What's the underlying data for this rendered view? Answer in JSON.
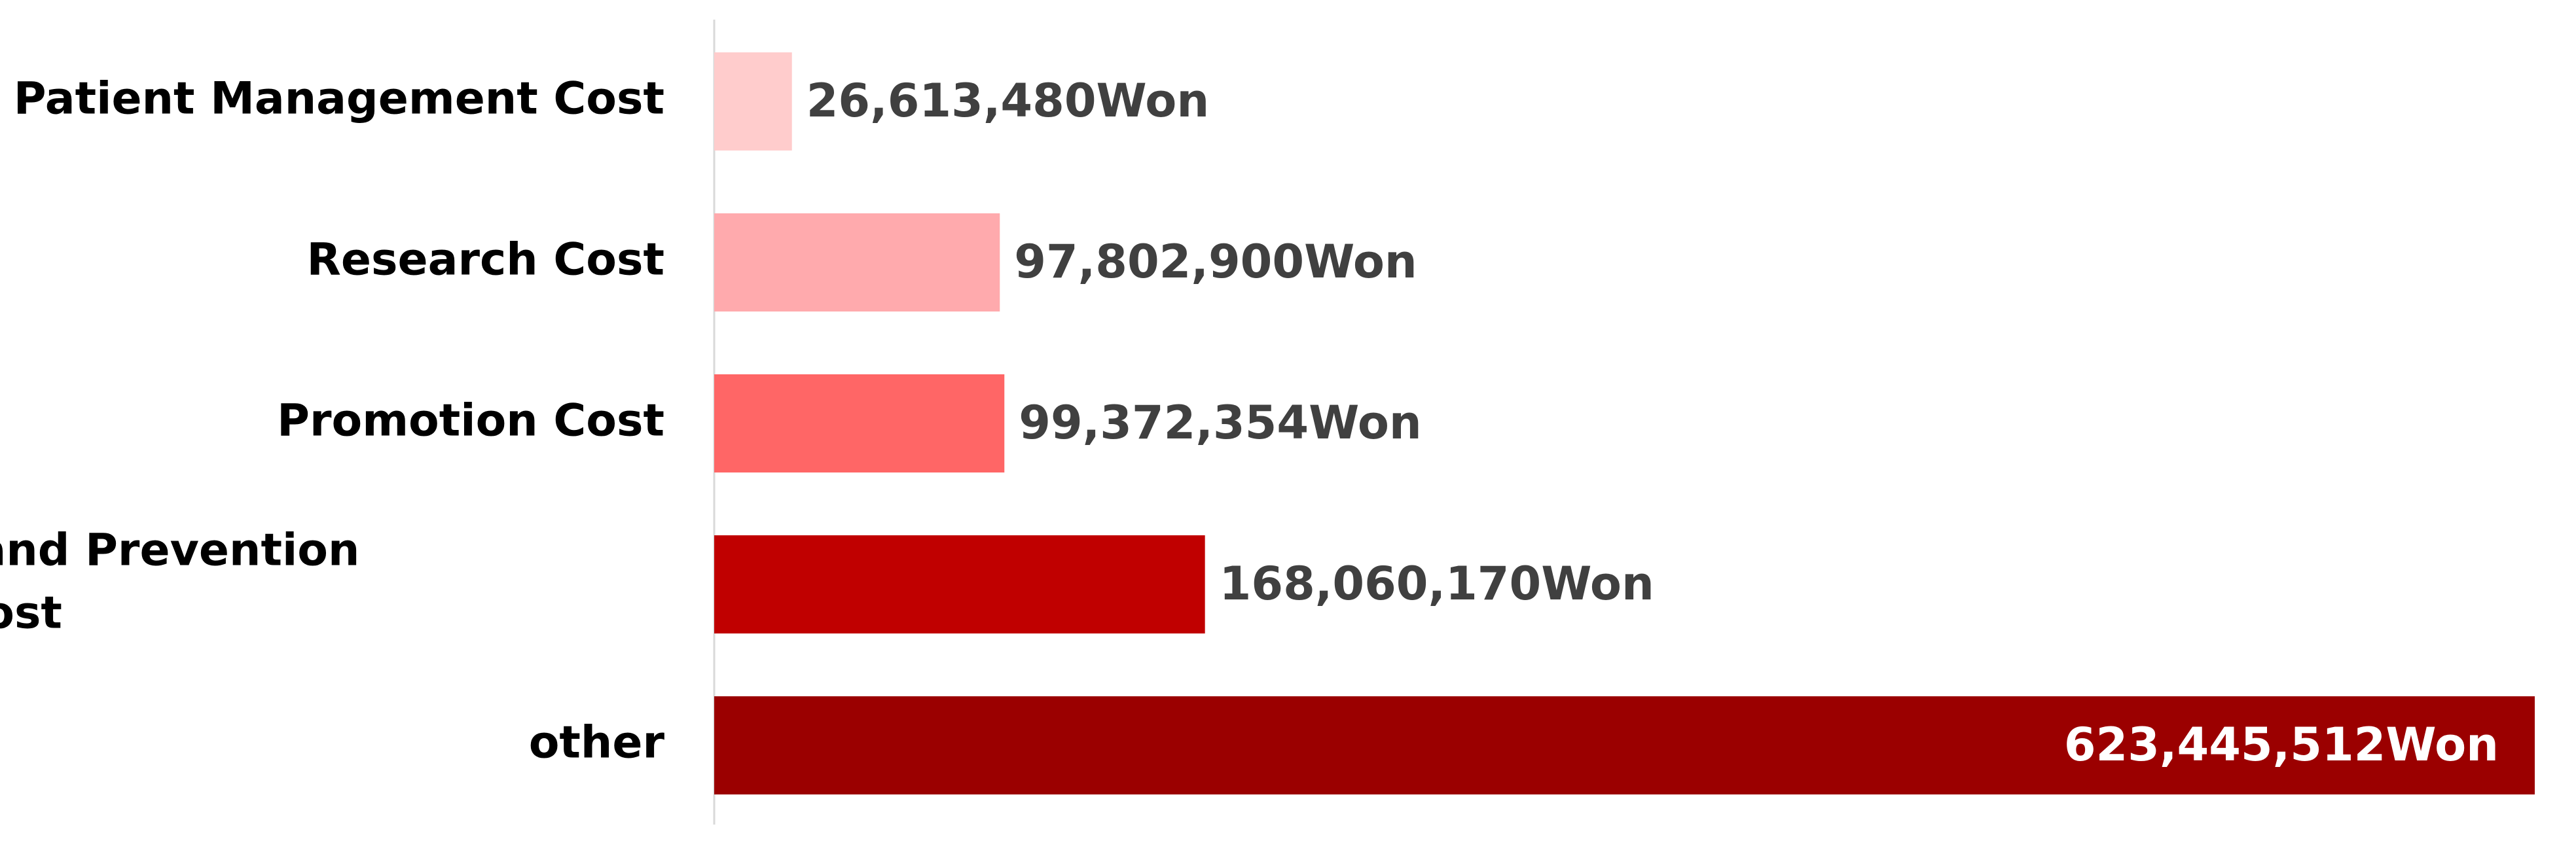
{
  "chart_data": {
    "type": "bar",
    "orientation": "horizontal",
    "title": "",
    "xlabel": "",
    "ylabel": "",
    "grid": false,
    "legend": "none",
    "unit_suffix": "Won",
    "xlim": [
      0,
      623445512
    ],
    "categories": [
      [
        "Patient Management Cost"
      ],
      [
        "Research Cost"
      ],
      [
        "Promotion Cost"
      ],
      [
        "Training and Prevention",
        "Project Cost"
      ],
      [
        "other"
      ]
    ],
    "values": [
      26613480,
      97802900,
      99372354,
      168060170,
      623445512
    ],
    "data_labels": [
      "26,613,480Won",
      "97,802,900Won",
      "99,372,354Won",
      "168,060,170Won",
      "623,445,512Won"
    ],
    "colors": [
      "#FFCCCC",
      "#FFAAAD",
      "#FF6666",
      "#C00000",
      "#9B0000"
    ],
    "label_colors": [
      "#404040",
      "#404040",
      "#404040",
      "#404040",
      "#FFFFFF"
    ],
    "axis_color": "#D9D9D9"
  }
}
